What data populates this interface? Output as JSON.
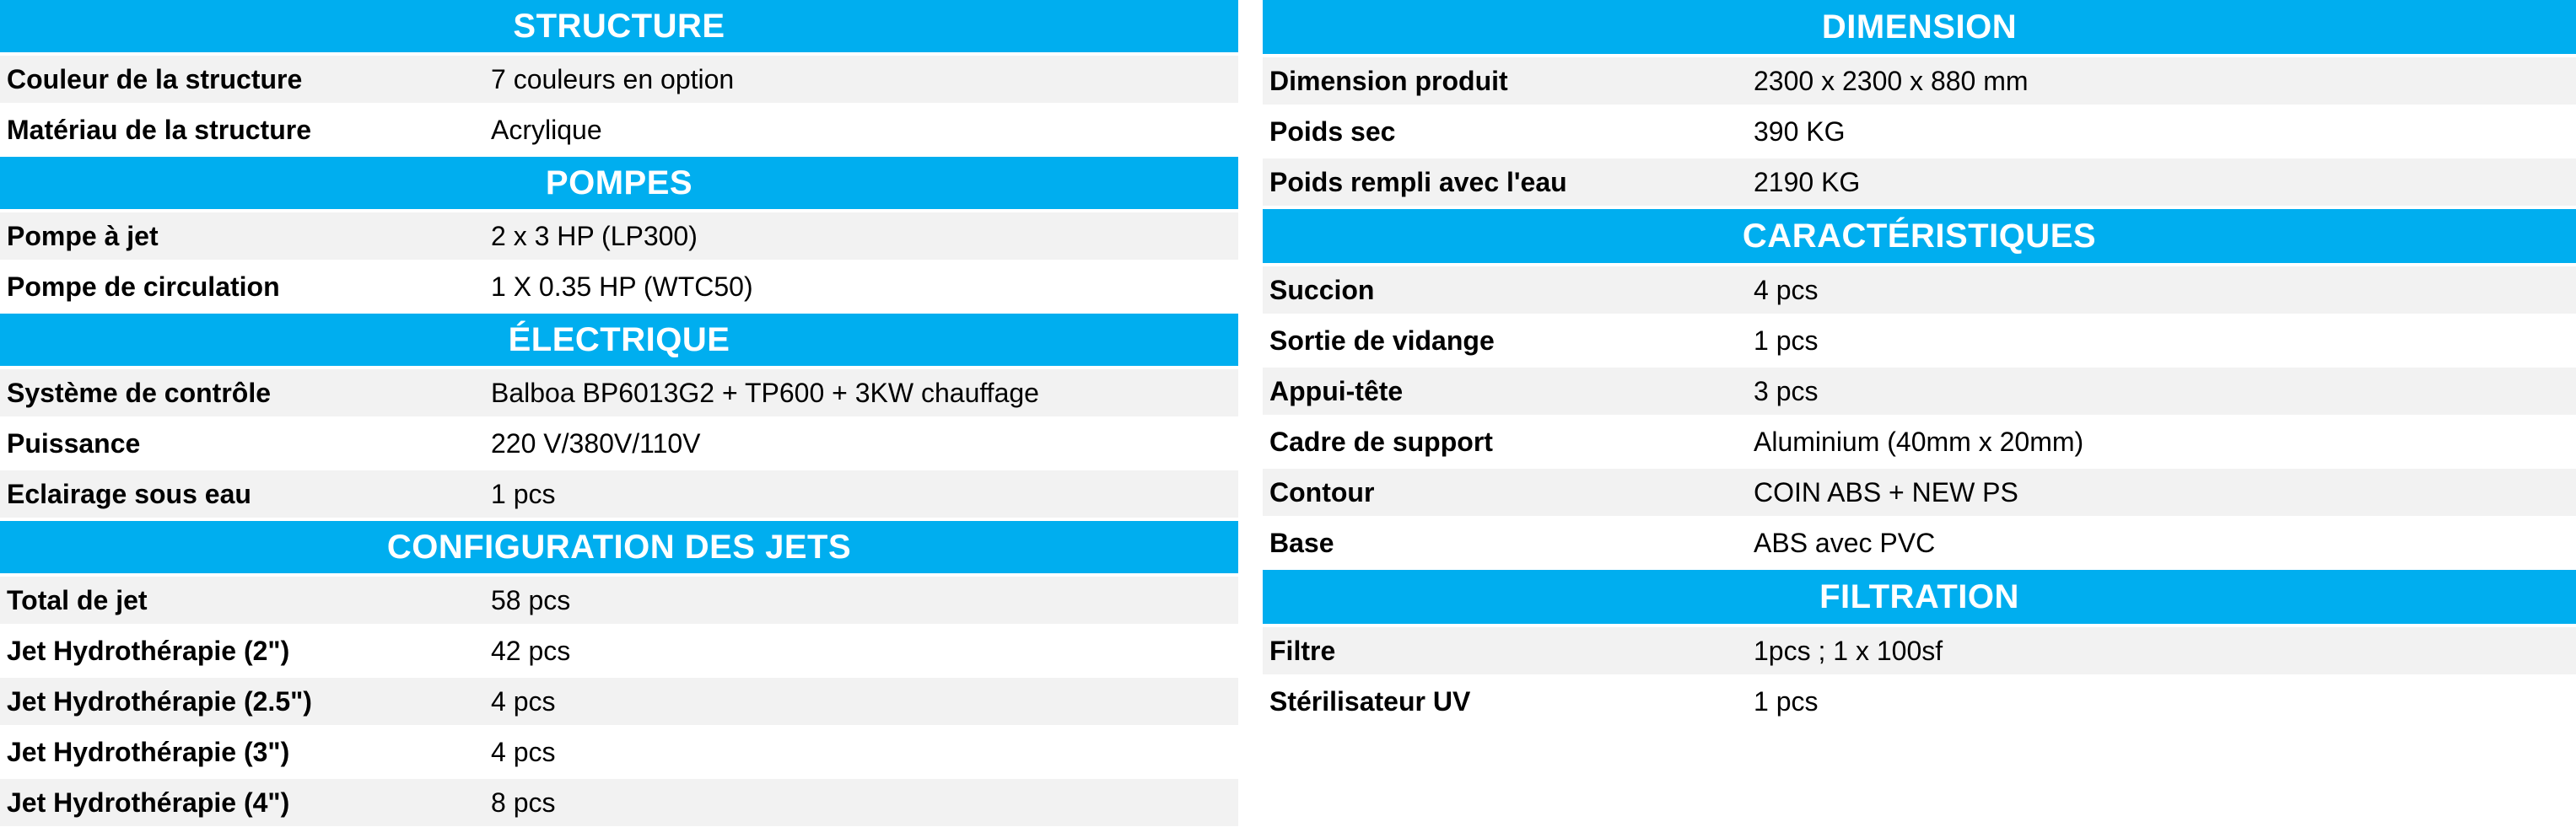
{
  "colors": {
    "accent": "#00AEEF",
    "row_alt": "#F2F2F2",
    "row": "#FFFFFF",
    "header_text": "#FFFFFF",
    "text": "#000000"
  },
  "tables": [
    {
      "id": "left",
      "sections": [
        {
          "title": "STRUCTURE",
          "rows": [
            {
              "label": "Couleur de la structure",
              "value": "7 couleurs en option"
            },
            {
              "label": "Matériau de la structure",
              "value": "Acrylique"
            }
          ]
        },
        {
          "title": "POMPES",
          "rows": [
            {
              "label": "Pompe à jet",
              "value": "2 x 3 HP (LP300)"
            },
            {
              "label": "Pompe de circulation",
              "value": "1 X 0.35 HP (WTC50)"
            }
          ]
        },
        {
          "title": "ÉLECTRIQUE",
          "rows": [
            {
              "label": "Système de contrôle",
              "value": "Balboa BP6013G2 + TP600 + 3KW chauffage"
            },
            {
              "label": "Puissance",
              "value": "220 V/380V/110V"
            },
            {
              "label": "Eclairage sous eau",
              "value": "1 pcs"
            }
          ]
        },
        {
          "title": "CONFIGURATION DES JETS",
          "rows": [
            {
              "label": "Total de jet",
              "value": "58 pcs"
            },
            {
              "label": "Jet Hydrothérapie (2\")",
              "value": "42 pcs"
            },
            {
              "label": "Jet Hydrothérapie (2.5\")",
              "value": "4 pcs"
            },
            {
              "label": "Jet Hydrothérapie (3\")",
              "value": "4 pcs"
            },
            {
              "label": "Jet Hydrothérapie (4\")",
              "value": "8 pcs"
            }
          ]
        }
      ]
    },
    {
      "id": "right",
      "sections": [
        {
          "title": "DIMENSION",
          "rows": [
            {
              "label": "Dimension produit",
              "value": "2300 x 2300 x 880 mm"
            },
            {
              "label": "Poids sec",
              "value": "390 KG"
            },
            {
              "label": "Poids rempli avec l'eau",
              "value": "2190 KG"
            }
          ]
        },
        {
          "title": "CARACTÉRISTIQUES",
          "rows": [
            {
              "label": "Succion",
              "value": "4 pcs"
            },
            {
              "label": "Sortie de vidange",
              "value": "1 pcs"
            },
            {
              "label": "Appui-tête",
              "value": "3 pcs"
            },
            {
              "label": "Cadre de support",
              "value": "Aluminium (40mm x 20mm)"
            },
            {
              "label": "Contour",
              "value": "COIN ABS + NEW PS"
            },
            {
              "label": "Base",
              "value": "ABS avec PVC"
            }
          ]
        },
        {
          "title": "FILTRATION",
          "rows": [
            {
              "label": "Filtre",
              "value": "1pcs ; 1 x 100sf"
            },
            {
              "label": "Stérilisateur UV",
              "value": "1 pcs"
            }
          ]
        }
      ]
    }
  ]
}
